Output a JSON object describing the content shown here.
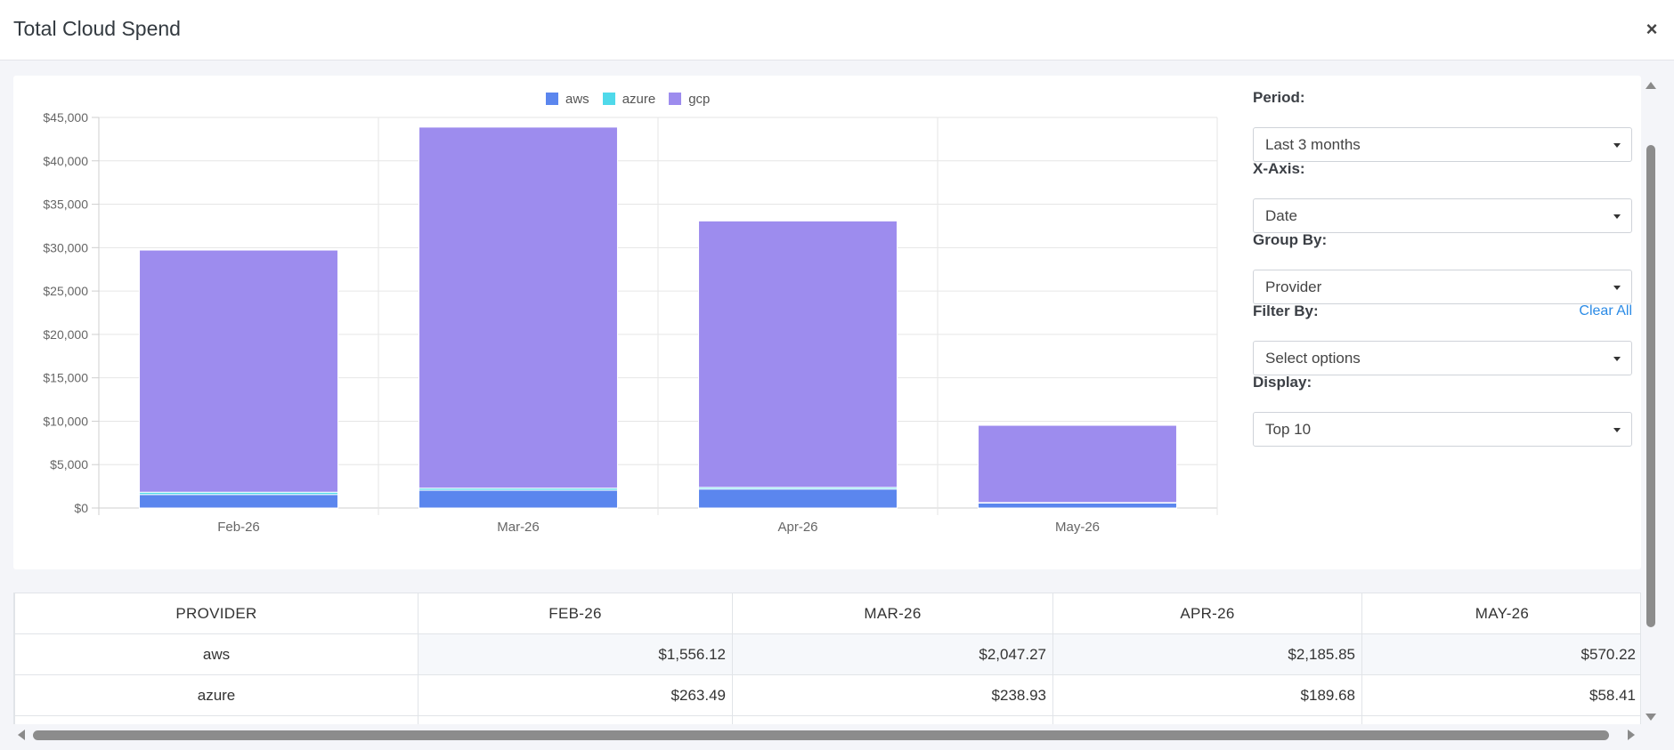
{
  "modal": {
    "title": "Total Cloud Spend",
    "close_label": "×"
  },
  "controls": {
    "period": {
      "label": "Period:",
      "value": "Last 3 months"
    },
    "x_axis": {
      "label": "X-Axis:",
      "value": "Date"
    },
    "group_by": {
      "label": "Group By:",
      "value": "Provider"
    },
    "filter_by": {
      "label": "Filter By:",
      "value": "Select options",
      "clear_label": "Clear All"
    },
    "display": {
      "label": "Display:",
      "value": "Top 10"
    }
  },
  "chart_data": {
    "type": "bar",
    "stacked": true,
    "categories": [
      "Feb-26",
      "Mar-26",
      "Apr-26",
      "May-26"
    ],
    "series": [
      {
        "name": "aws",
        "color": "#5b86ee",
        "values": [
          1556.12,
          2047.27,
          2185.85,
          570.22
        ]
      },
      {
        "name": "azure",
        "color": "#4fd9ea",
        "values": [
          263.49,
          238.93,
          189.68,
          58.41
        ]
      },
      {
        "name": "gcp",
        "color": "#9d8cee",
        "values": [
          27900,
          41600,
          30700,
          8900
        ]
      }
    ],
    "ylim": [
      0,
      45000
    ],
    "ytick_labels": [
      "$0",
      "$5,000",
      "$10,000",
      "$15,000",
      "$20,000",
      "$25,000",
      "$30,000",
      "$35,000",
      "$40,000",
      "$45,000"
    ],
    "legend_position": "top",
    "grid": true
  },
  "table": {
    "headers": [
      "PROVIDER",
      "FEB-26",
      "MAR-26",
      "APR-26",
      "MAY-26"
    ],
    "rows": [
      {
        "provider": "aws",
        "values": [
          "$1,556.12",
          "$2,047.27",
          "$2,185.85",
          "$570.22"
        ]
      },
      {
        "provider": "azure",
        "values": [
          "$263.49",
          "$238.93",
          "$189.68",
          "$58.41"
        ]
      }
    ]
  }
}
